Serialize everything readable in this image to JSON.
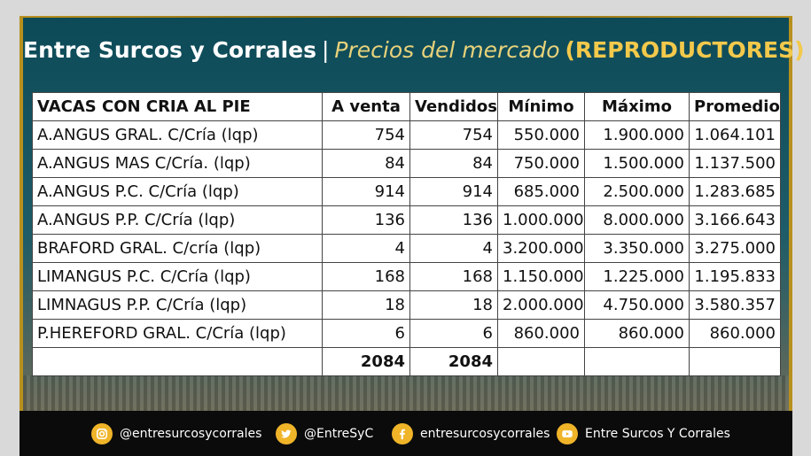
{
  "header": {
    "brand": "Entre Surcos y Corrales",
    "separator": "|",
    "subtitle": "Precios del mercado",
    "tag": "(REPRODUCTORES)"
  },
  "table": {
    "columns": [
      "VACAS CON CRIA AL PIE",
      "A venta",
      "Vendidos",
      "Mínimo",
      "Máximo",
      "Promedio"
    ],
    "rows": [
      [
        "A.ANGUS GRAL. C/Cría (lqp)",
        "754",
        "754",
        "550.000",
        "1.900.000",
        "1.064.101"
      ],
      [
        "A.ANGUS MAS C/Cría. (lqp)",
        "84",
        "84",
        "750.000",
        "1.500.000",
        "1.137.500"
      ],
      [
        "A.ANGUS P.C. C/Cría (lqp)",
        "914",
        "914",
        "685.000",
        "2.500.000",
        "1.283.685"
      ],
      [
        "A.ANGUS P.P. C/Cría (lqp)",
        "136",
        "136",
        "1.000.000",
        "8.000.000",
        "3.166.643"
      ],
      [
        "BRAFORD GRAL. C/cría (lqp)",
        "4",
        "4",
        "3.200.000",
        "3.350.000",
        "3.275.000"
      ],
      [
        "LIMANGUS P.C. C/Cría (lqp)",
        "168",
        "168",
        "1.150.000",
        "1.225.000",
        "1.195.833"
      ],
      [
        "LIMNAGUS P.P. C/Cría (lqp)",
        "18",
        "18",
        "2.000.000",
        "4.750.000",
        "3.580.357"
      ],
      [
        "P.HEREFORD GRAL. C/Cría (lqp)",
        "6",
        "6",
        "860.000",
        "860.000",
        "860.000"
      ]
    ],
    "totals": [
      "",
      "2084",
      "2084",
      "",
      "",
      ""
    ]
  },
  "footer": {
    "instagram": {
      "icon": "instagram-icon",
      "label": "@entresurcosycorrales"
    },
    "twitter": {
      "icon": "twitter-icon",
      "label": "@EntreSyC"
    },
    "facebook": {
      "icon": "facebook-icon",
      "label": "entresurcosycorrales"
    },
    "youtube": {
      "icon": "youtube-icon",
      "label": "Entre Surcos Y Corrales"
    }
  },
  "colors": {
    "panel": "#0d4a58",
    "frame": "#b8901e",
    "accent": "#f3c94b",
    "icon": "#f0b429",
    "footer": "#0b0b0b"
  }
}
